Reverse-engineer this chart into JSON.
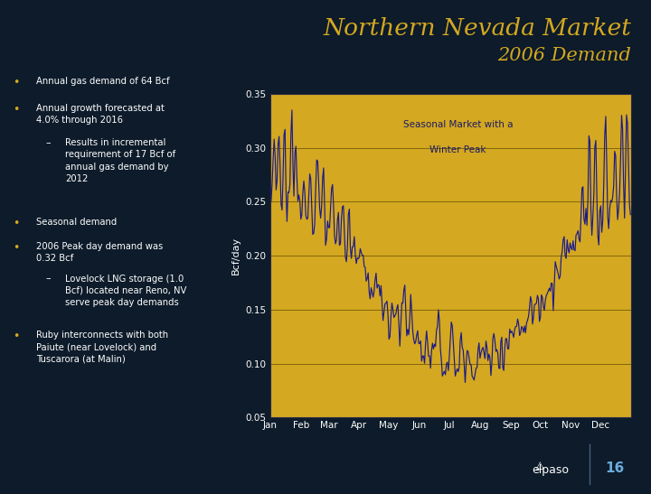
{
  "title_line1": "Northern Nevada Market",
  "title_line2": "2006 Demand",
  "title_color": "#D4A820",
  "bg_color": "#0D1B2A",
  "header_color": "#0A1520",
  "chart_bg": "#D4A820",
  "line_color": "#1A1A8C",
  "grid_color": "#8B7A00",
  "ylabel": "Bcf/day",
  "annotation_line1": "Seasonal Market with a",
  "annotation_line2": "Winter Peak",
  "ylim": [
    0.05,
    0.35
  ],
  "yticks": [
    0.05,
    0.1,
    0.15,
    0.2,
    0.25,
    0.3,
    0.35
  ],
  "months": [
    "Jan",
    "Feb",
    "Mar",
    "Apr",
    "May",
    "Jun",
    "Jul",
    "Aug",
    "Sep",
    "Oct",
    "Nov",
    "Dec"
  ],
  "bullet_color": "#D4A820",
  "text_color": "#FFFFFF",
  "page_number": "16"
}
